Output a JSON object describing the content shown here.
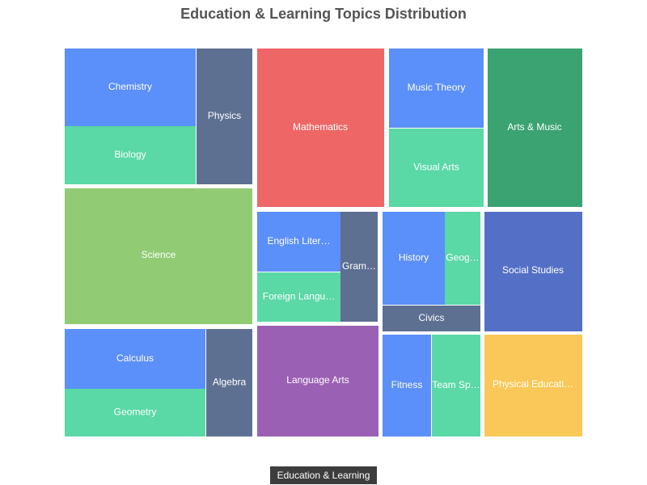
{
  "chart_data": {
    "type": "treemap",
    "title": "Education & Learning Topics Distribution",
    "root": "Education & Learning",
    "groups": [
      {
        "name": "Science",
        "color": "#91cc75",
        "value": 10,
        "children": [
          {
            "name": "Chemistry",
            "value": 4,
            "color": "#5b8ff9"
          },
          {
            "name": "Biology",
            "value": 3,
            "color": "#5ad8a6"
          },
          {
            "name": "Physics",
            "value": 3,
            "color": "#5d7092"
          }
        ]
      },
      {
        "name": "Mathematics",
        "color": "#ee6666",
        "value": 9,
        "children": [
          {
            "name": "Calculus",
            "value": 3,
            "color": "#5b8ff9"
          },
          {
            "name": "Geometry",
            "value": 2.5,
            "color": "#5ad8a6"
          },
          {
            "name": "Algebra",
            "value": 1.5,
            "color": "#5d7092"
          }
        ]
      },
      {
        "name": "Arts & Music",
        "color": "#3ba272",
        "value": 8,
        "children": [
          {
            "name": "Music Theory",
            "value": 2,
            "color": "#5b8ff9"
          },
          {
            "name": "Visual Arts",
            "value": 2,
            "color": "#5ad8a6"
          }
        ]
      },
      {
        "name": "Language Arts",
        "color": "#9a60b4",
        "value": 7,
        "children": [
          {
            "name": "English Literature",
            "value": 2.5,
            "color": "#5b8ff9"
          },
          {
            "name": "Foreign Languages",
            "value": 2,
            "color": "#5ad8a6"
          },
          {
            "name": "Grammar",
            "value": 1.2,
            "color": "#5d7092"
          }
        ]
      },
      {
        "name": "Social Studies",
        "color": "#5470c6",
        "value": 6,
        "children": [
          {
            "name": "History",
            "value": 3,
            "color": "#5b8ff9"
          },
          {
            "name": "Geography",
            "value": 1.5,
            "color": "#5ad8a6"
          },
          {
            "name": "Civics",
            "value": 1,
            "color": "#5d7092"
          }
        ]
      },
      {
        "name": "Physical Education",
        "color": "#fac858",
        "value": 5,
        "children": [
          {
            "name": "Fitness",
            "value": 2,
            "color": "#5b8ff9"
          },
          {
            "name": "Team Sports",
            "value": 2,
            "color": "#5ad8a6"
          }
        ]
      }
    ]
  }
}
